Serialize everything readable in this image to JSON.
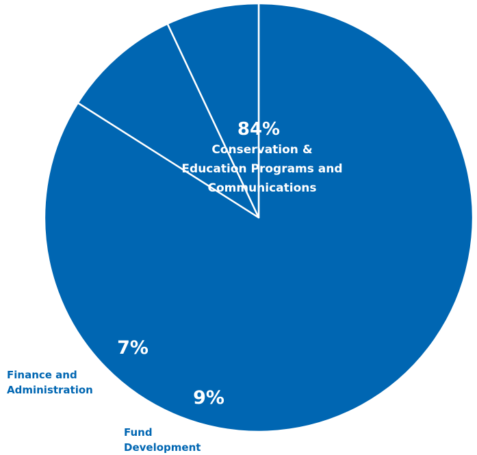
{
  "chart_data": {
    "type": "pie",
    "title": "",
    "colors": {
      "slice_fill": "#0066b2",
      "slice_border": "#ffffff",
      "outside_label": "#0066b2"
    },
    "slices": [
      {
        "value": 84,
        "percent_label": "84%",
        "label_lines": [
          "Conservation &",
          "Education Programs and",
          "Communications"
        ]
      },
      {
        "value": 9,
        "percent_label": "9%",
        "label_lines": [
          "Fund",
          "Development"
        ]
      },
      {
        "value": 7,
        "percent_label": "7%",
        "label_lines": [
          "Finance and",
          "Administration"
        ]
      }
    ]
  }
}
